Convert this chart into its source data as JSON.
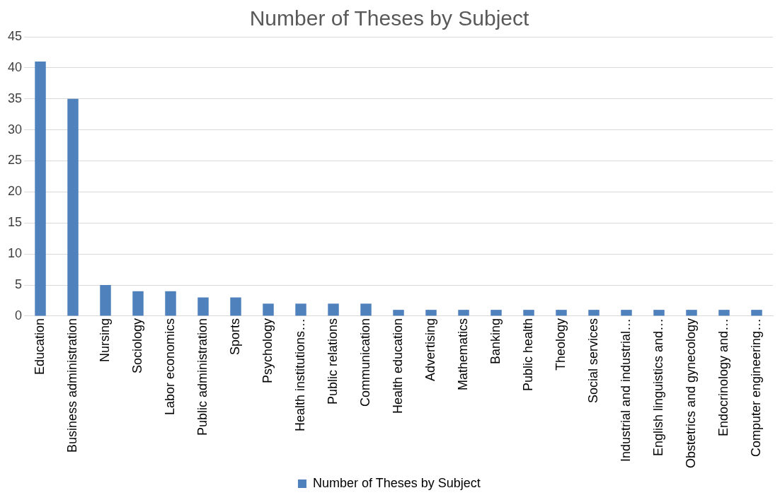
{
  "chart_data": {
    "type": "bar",
    "title": "Number of Theses by Subject",
    "categories": [
      "Education",
      "Business administration",
      "Nursing",
      "Sociology",
      "Labor economics",
      "Public administration",
      "Sports",
      "Psychology",
      "Health institutions…",
      "Public relations",
      "Communication",
      "Health education",
      "Advertising",
      "Mathematics",
      "Banking",
      "Public health",
      "Theology",
      "Social services",
      "Industrial and industrial…",
      "English linguistics and…",
      "Obstetrics and gynecology",
      "Endocrinology and…",
      "Computer engineering…"
    ],
    "series": [
      {
        "name": "Number of Theses by Subject",
        "color": "#4f81bd",
        "values": [
          41,
          35,
          5,
          4,
          4,
          3,
          3,
          2,
          2,
          2,
          2,
          1,
          1,
          1,
          1,
          1,
          1,
          1,
          1,
          1,
          1,
          1,
          1
        ]
      }
    ],
    "ylim": [
      0,
      45
    ],
    "yticks": [
      0,
      5,
      10,
      15,
      20,
      25,
      30,
      35,
      40,
      45
    ],
    "grid": "y",
    "legend": "bottom"
  }
}
